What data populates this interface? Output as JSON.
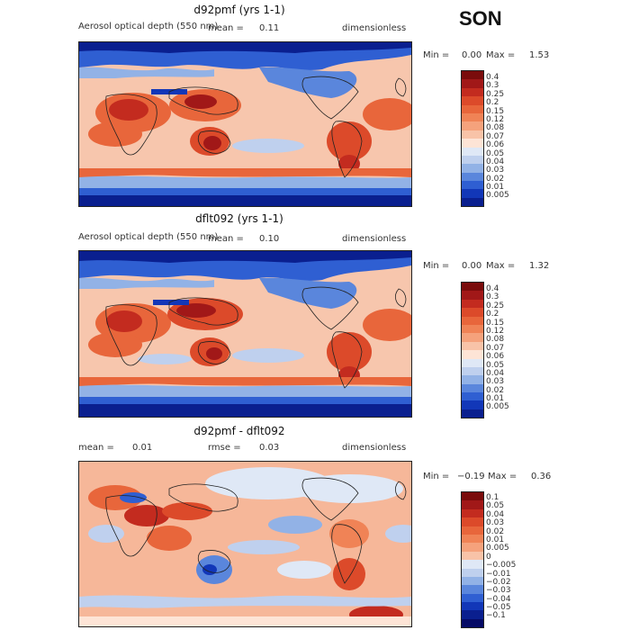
{
  "season": "SON",
  "panels": [
    {
      "title": "d92pmf (yrs 1-1)",
      "left_label": "Aerosol optical depth (550 nm)",
      "mean_label": "mean =",
      "mean_value": "0.11",
      "units": "dimensionless",
      "min_label": "Min =",
      "min_value": "0.00",
      "max_label": "Max =",
      "max_value": "1.53",
      "colorbar_labels": [
        "0.4",
        "0.3",
        "0.25",
        "0.2",
        "0.15",
        "0.12",
        "0.08",
        "0.07",
        "0.06",
        "0.05",
        "0.04",
        "0.03",
        "0.02",
        "0.01",
        "0.005"
      ]
    },
    {
      "title": "dflt092 (yrs 1-1)",
      "left_label": "Aerosol optical depth (550 nm)",
      "mean_label": "mean =",
      "mean_value": "0.10",
      "units": "dimensionless",
      "min_label": "Min =",
      "min_value": "0.00",
      "max_label": "Max =",
      "max_value": "1.32",
      "colorbar_labels": [
        "0.4",
        "0.3",
        "0.25",
        "0.2",
        "0.15",
        "0.12",
        "0.08",
        "0.07",
        "0.06",
        "0.05",
        "0.04",
        "0.03",
        "0.02",
        "0.01",
        "0.005"
      ]
    },
    {
      "title": "d92pmf - dflt092",
      "left_label": "mean =",
      "left_value": "0.01",
      "rmse_label": "rmse =",
      "rmse_value": "0.03",
      "units": "dimensionless",
      "min_label": "Min =",
      "min_value": "−0.19",
      "max_label": "Max =",
      "max_value": "0.36",
      "colorbar_labels": [
        "0.1",
        "0.05",
        "0.04",
        "0.03",
        "0.02",
        "0.01",
        "0.005",
        "0",
        "−0.005",
        "−0.01",
        "−0.02",
        "−0.03",
        "−0.04",
        "−0.05",
        "−0.1"
      ]
    }
  ],
  "colors": {
    "scale": [
      "#7a0c0c",
      "#a11818",
      "#c32b1f",
      "#dc4a2a",
      "#e8663b",
      "#f08356",
      "#f5a27c",
      "#f8c3a8",
      "#fde4d6",
      "#dfe8f6",
      "#bfd0ee",
      "#92b2e6",
      "#5a86dc",
      "#2f5fd2",
      "#1237b8",
      "#0a1f8f"
    ],
    "diff_scale": [
      "#7a0c0c",
      "#a11818",
      "#c32b1f",
      "#dc4a2a",
      "#e8663b",
      "#f08356",
      "#f5a27c",
      "#f8c3a8",
      "#dfe8f6",
      "#bfd0ee",
      "#92b2e6",
      "#5a86dc",
      "#2f5fd2",
      "#1237b8",
      "#0a1f8f",
      "#050a66"
    ]
  }
}
